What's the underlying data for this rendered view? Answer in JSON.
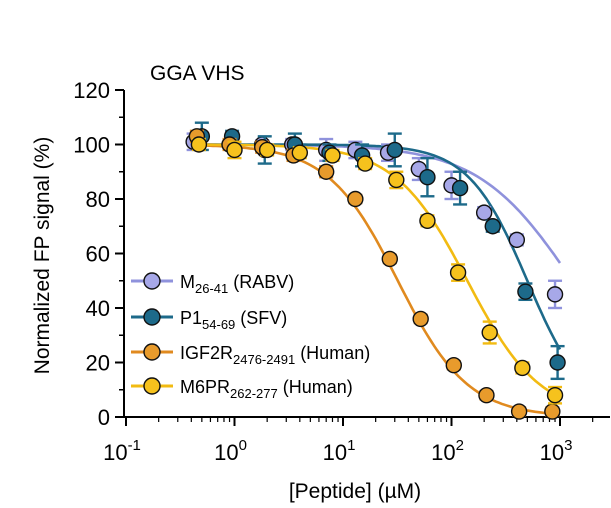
{
  "chart_data": {
    "type": "scatter",
    "title": "GGA VHS",
    "xlabel": "[Peptide] (µM)",
    "ylabel": "Normalized FP signal (%)",
    "xscale": "log",
    "xlim": [
      0.1,
      3000
    ],
    "ylim": [
      0,
      120
    ],
    "x_ticks": [
      {
        "value": 0.1,
        "base": "10",
        "exp": "-1"
      },
      {
        "value": 1,
        "base": "10",
        "exp": "0"
      },
      {
        "value": 10,
        "base": "10",
        "exp": "1"
      },
      {
        "value": 100,
        "base": "10",
        "exp": "2"
      },
      {
        "value": 1000,
        "base": "10",
        "exp": "3"
      }
    ],
    "y_ticks": [
      0,
      20,
      40,
      60,
      80,
      100,
      120
    ],
    "legend_position": "lower-left",
    "series": [
      {
        "id": "m",
        "label_main": "M",
        "label_sub": "26-41",
        "label_rest": " (RABV)",
        "marker_fill": "#a7a8e8",
        "line_color": "#8f92dc",
        "x": [
          0.42,
          0.9,
          1.8,
          3.4,
          7.0,
          13,
          26,
          50,
          100,
          200,
          400,
          900
        ],
        "y": [
          101,
          100,
          100,
          100,
          98,
          98,
          97,
          91,
          85,
          75,
          65,
          45
        ],
        "err": [
          3,
          1.5,
          1.5,
          2,
          4,
          3,
          3,
          4,
          5,
          2,
          2,
          5
        ],
        "curve": {
          "top": 100,
          "bottom": 0,
          "ec50": 1300,
          "hill": 1.0
        }
      },
      {
        "id": "p1",
        "label_main": "P1",
        "label_sub": "54-69",
        "label_rest": " (SFV)",
        "marker_fill": "#1d6a8a",
        "line_color": "#1d6a8a",
        "x": [
          0.5,
          0.95,
          1.9,
          3.6,
          7.5,
          15,
          30,
          60,
          120,
          240,
          480,
          950
        ],
        "y": [
          103,
          103,
          98,
          100,
          97,
          96,
          98,
          88,
          84,
          70,
          46,
          20
        ],
        "err": [
          5,
          2,
          5,
          4,
          3,
          4,
          6,
          7,
          6,
          2,
          3,
          6
        ],
        "curve": {
          "top": 100,
          "bottom": 0,
          "ec50": 500,
          "hill": 1.6
        }
      },
      {
        "id": "igf2r",
        "label_main": "IGF2R",
        "label_sub": "2476-2491",
        "label_rest": " (Human)",
        "marker_fill": "#e89b2c",
        "line_color": "#e08a1f",
        "x": [
          0.45,
          0.9,
          1.8,
          3.5,
          7.0,
          13,
          27,
          52,
          105,
          210,
          420,
          850
        ],
        "y": [
          103,
          100,
          99,
          96,
          90,
          80,
          58,
          36,
          19,
          8,
          2,
          2
        ],
        "err": [
          2,
          2,
          2,
          2,
          2,
          1.5,
          1.5,
          1.5,
          1.5,
          1.5,
          1.5,
          1.5
        ],
        "curve": {
          "top": 100,
          "bottom": 0,
          "ec50": 32,
          "hill": 1.35
        }
      },
      {
        "id": "m6pr",
        "label_main": "M6PR",
        "label_sub": "262-277",
        "label_rest": " (Human)",
        "marker_fill": "#f6c21d",
        "line_color": "#f2bb12",
        "x": [
          0.47,
          1.0,
          2.0,
          4.0,
          8.0,
          16,
          31,
          60,
          115,
          225,
          450,
          900
        ],
        "y": [
          100,
          98,
          98,
          97,
          96,
          93,
          87,
          72,
          53,
          31,
          18,
          8
        ],
        "err": [
          2,
          3,
          2,
          2,
          2,
          2,
          3,
          2,
          3,
          4,
          2,
          3
        ],
        "curve": {
          "top": 100,
          "bottom": 0,
          "ec50": 140,
          "hill": 1.3
        }
      }
    ]
  }
}
